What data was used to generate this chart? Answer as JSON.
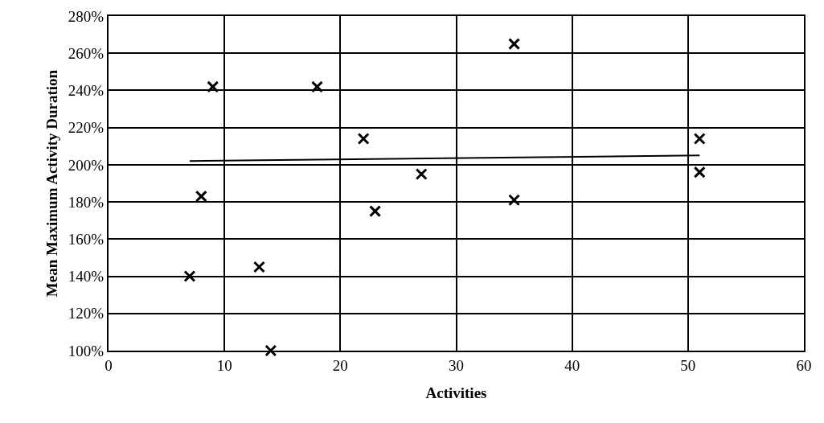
{
  "chart_data": {
    "type": "scatter",
    "xlabel": "Activities",
    "ylabel": "Mean Maximum Activity Duration",
    "series": [
      {
        "color": "#000000",
        "marker": "cross",
        "x": [
          7,
          8,
          9,
          13,
          14,
          18,
          22,
          23,
          27,
          35,
          35,
          51,
          51
        ],
        "values": [
          140,
          183,
          242,
          145,
          100,
          242,
          214,
          175,
          195,
          265,
          181,
          214,
          196
        ]
      },
      {
        "type": "line",
        "color": "#000000",
        "marker": "none",
        "x": [
          7,
          51
        ],
        "values": [
          202,
          205
        ]
      }
    ],
    "xlim": [
      0,
      60
    ],
    "xticks": [
      0,
      10,
      20,
      30,
      40,
      50,
      60
    ],
    "ylim": [
      100,
      280
    ],
    "yticks": [
      {
        "value": 100,
        "label": "100%"
      },
      {
        "value": 120,
        "label": "120%"
      },
      {
        "value": 140,
        "label": "140%"
      },
      {
        "value": 160,
        "label": "160%"
      },
      {
        "value": 180,
        "label": "180%"
      },
      {
        "value": 200,
        "label": "200%"
      },
      {
        "value": 220,
        "label": "220%"
      },
      {
        "value": 240,
        "label": "240%"
      },
      {
        "value": 260,
        "label": "260%"
      },
      {
        "value": 280,
        "label": "280%"
      }
    ],
    "grid": true
  }
}
